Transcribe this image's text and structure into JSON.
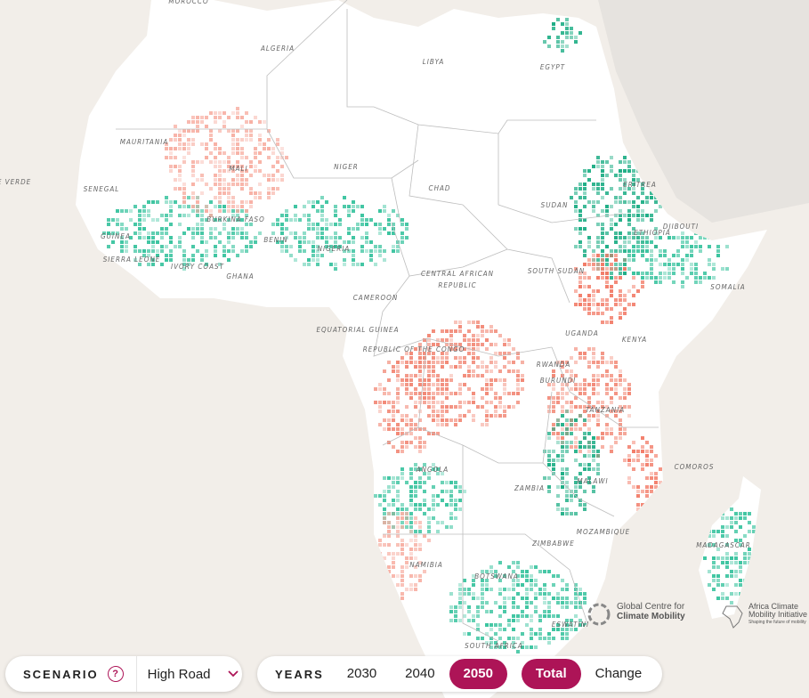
{
  "map": {
    "countries": [
      "MOROCCO",
      "ALGERIA",
      "LIBYA",
      "EGYPT",
      "MAURITANIA",
      "MALI",
      "NIGER",
      "CHAD",
      "SUDAN",
      "ERITREA",
      "DJIBOUTI",
      "E VERDE",
      "SENEGAL",
      "BURKINA FASO",
      "GUINEA",
      "BENIN",
      "NIGERIA",
      "SIERRA LEONE",
      "IVORY COAST",
      "GHANA",
      "CENTRAL AFRICAN",
      "REPUBLIC",
      "SOUTH SUDAN",
      "ETHIOPIA",
      "SOMALIA",
      "CAMEROON",
      "EQUATORIAL GUINEA",
      "REPUBLIC OF THE CONGO",
      "UGANDA",
      "KENYA",
      "RWANDA",
      "BURUNDI",
      "TANZANIA",
      "COMOROS",
      "ANGOLA",
      "ZAMBIA",
      "MALAWI",
      "MOZAMBIQUE",
      "ZIMBABWE",
      "MADAGASCAR",
      "NAMIBIA",
      "BOTSWANA",
      "ESWATINI",
      "SOUTH AFRICA"
    ]
  },
  "logos": {
    "gccm": [
      "Global Centre for",
      "Climate Mobility"
    ],
    "acmi": [
      "Africa Climate",
      "Mobility Initiative",
      "Shaping the future of mobility"
    ]
  },
  "controls": {
    "scenario_label": "SCENARIO",
    "help": "?",
    "scenario_value": "High Road",
    "years_label": "YEARS",
    "years": [
      "2030",
      "2040",
      "2050"
    ],
    "active_year": 2,
    "modes": [
      "Total",
      "Change"
    ],
    "active_mode": 0
  }
}
